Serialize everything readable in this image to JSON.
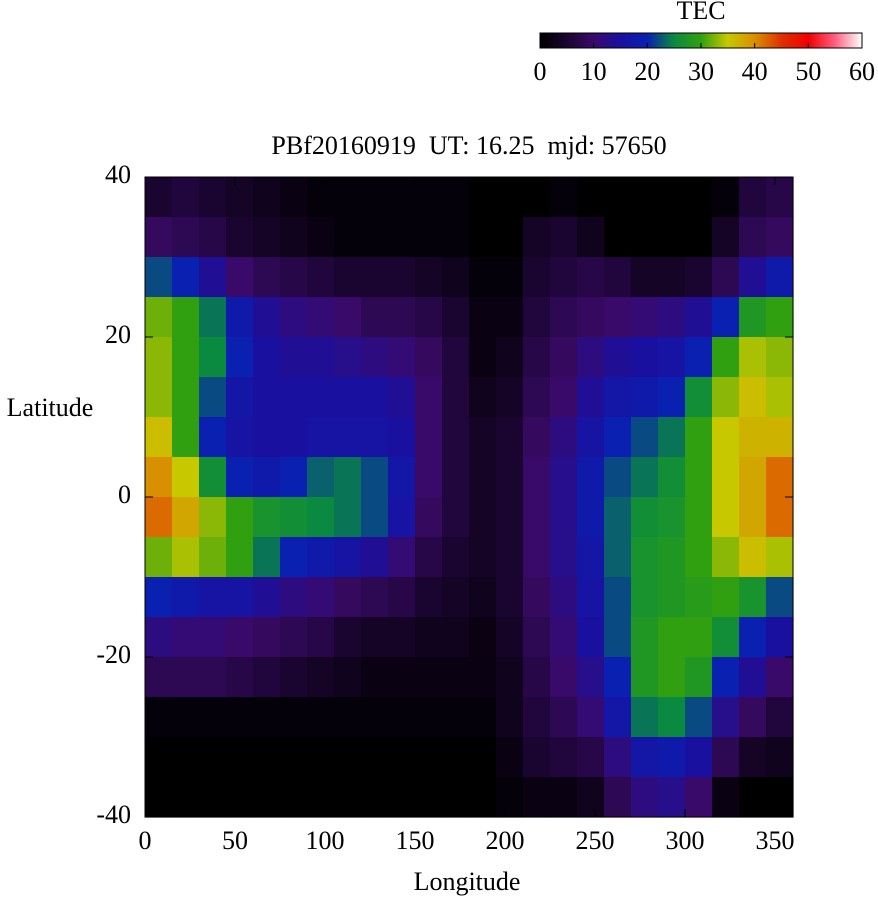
{
  "chart_data": {
    "type": "heatmap",
    "title": "PBf20160919  UT: 16.25  mjd: 57650",
    "x_label": "Longitude",
    "y_label": "Latitude",
    "xlim": [
      0,
      360
    ],
    "ylim": [
      -40,
      40
    ],
    "xticks": [
      0,
      50,
      100,
      150,
      200,
      250,
      300,
      350
    ],
    "yticks": [
      -40,
      -20,
      0,
      20,
      40
    ],
    "x": [
      7.5,
      22.5,
      37.5,
      52.5,
      67.5,
      82.5,
      97.5,
      112.5,
      127.5,
      142.5,
      157.5,
      172.5,
      187.5,
      202.5,
      217.5,
      232.5,
      247.5,
      262.5,
      277.5,
      292.5,
      307.5,
      322.5,
      337.5,
      352.5
    ],
    "y": [
      37.5,
      32.5,
      27.5,
      22.5,
      17.5,
      12.5,
      7.5,
      2.5,
      -2.5,
      -7.5,
      -12.5,
      -17.5,
      -22.5,
      -27.5,
      -32.5,
      -37.5
    ],
    "z": [
      [
        5,
        6,
        5,
        4,
        3,
        2,
        1,
        1,
        1,
        1,
        1,
        1,
        0,
        0,
        0,
        1,
        0,
        0,
        0,
        0,
        0,
        1,
        6,
        7
      ],
      [
        9,
        8,
        7,
        5,
        4,
        3,
        2,
        1,
        1,
        1,
        1,
        1,
        0,
        0,
        4,
        5,
        3,
        0,
        0,
        0,
        0,
        4,
        8,
        9
      ],
      [
        22,
        20,
        14,
        10,
        8,
        7,
        6,
        5,
        5,
        5,
        4,
        3,
        1,
        1,
        5,
        6,
        7,
        6,
        4,
        4,
        5,
        8,
        14,
        18
      ],
      [
        32,
        30,
        24,
        18,
        14,
        12,
        11,
        10,
        8,
        8,
        7,
        5,
        2,
        2,
        6,
        8,
        9,
        10,
        11,
        12,
        14,
        20,
        28,
        30
      ],
      [
        33,
        30,
        25,
        20,
        15,
        14,
        14,
        13,
        12,
        11,
        9,
        6,
        2,
        3,
        7,
        9,
        12,
        14,
        15,
        16,
        20,
        30,
        34,
        33
      ],
      [
        33,
        30,
        22,
        17,
        15,
        15,
        15,
        15,
        15,
        14,
        10,
        6,
        3,
        4,
        8,
        10,
        14,
        17,
        18,
        20,
        26,
        33,
        36,
        34
      ],
      [
        36,
        30,
        20,
        16,
        15,
        15,
        16,
        16,
        16,
        15,
        10,
        6,
        4,
        5,
        9,
        12,
        16,
        20,
        22,
        24,
        30,
        35,
        37,
        37
      ],
      [
        40,
        35,
        26,
        20,
        18,
        20,
        23,
        24,
        22,
        17,
        10,
        6,
        4,
        5,
        10,
        13,
        18,
        22,
        24,
        26,
        30,
        35,
        38,
        42
      ],
      [
        42,
        38,
        33,
        30,
        27,
        26,
        25,
        24,
        22,
        16,
        9,
        6,
        4,
        5,
        10,
        13,
        18,
        23,
        26,
        27,
        30,
        35,
        38,
        42
      ],
      [
        32,
        34,
        32,
        30,
        24,
        20,
        18,
        16,
        14,
        11,
        7,
        5,
        4,
        5,
        10,
        13,
        17,
        23,
        27,
        28,
        30,
        33,
        36,
        34
      ],
      [
        20,
        18,
        16,
        16,
        14,
        12,
        11,
        9,
        8,
        7,
        5,
        4,
        3,
        5,
        9,
        12,
        16,
        22,
        27,
        28,
        29,
        30,
        27,
        22
      ],
      [
        12,
        11,
        11,
        10,
        9,
        8,
        7,
        5,
        4,
        4,
        3,
        3,
        2,
        4,
        8,
        11,
        15,
        22,
        28,
        30,
        30,
        26,
        20,
        15
      ],
      [
        8,
        8,
        8,
        7,
        6,
        5,
        4,
        3,
        2,
        2,
        2,
        2,
        2,
        3,
        7,
        10,
        13,
        20,
        28,
        30,
        28,
        20,
        14,
        10
      ],
      [
        1,
        1,
        1,
        1,
        1,
        1,
        1,
        1,
        1,
        1,
        1,
        1,
        1,
        3,
        6,
        8,
        11,
        17,
        24,
        25,
        22,
        13,
        9,
        6
      ],
      [
        0,
        0,
        0,
        0,
        0,
        0,
        0,
        0,
        0,
        0,
        0,
        0,
        0,
        2,
        5,
        6,
        7,
        12,
        17,
        18,
        15,
        8,
        4,
        3
      ],
      [
        0,
        0,
        0,
        0,
        0,
        0,
        0,
        0,
        0,
        0,
        0,
        0,
        0,
        1,
        2,
        2,
        3,
        8,
        12,
        13,
        10,
        2,
        0,
        0
      ]
    ],
    "colorbar": {
      "title": "TEC",
      "lim": [
        0,
        60
      ],
      "ticks": [
        0,
        10,
        20,
        30,
        40,
        50,
        60
      ],
      "colors": [
        "#000000",
        "#1a0530",
        "#3a0a6a",
        "#1a10a0",
        "#0a20b0",
        "#0a8a40",
        "#30a010",
        "#c8c800",
        "#d89000",
        "#e03000",
        "#f00000",
        "#ff6080",
        "#ffffff"
      ]
    }
  }
}
